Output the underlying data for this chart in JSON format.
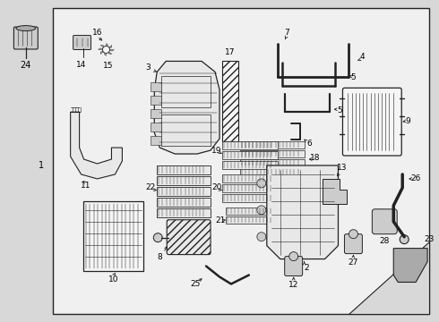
{
  "bg_color": "#d8d8d8",
  "box_color": "#f0f0f0",
  "line_color": "#222222",
  "label_color": "#000000",
  "fig_width": 4.9,
  "fig_height": 3.6,
  "dpi": 100
}
